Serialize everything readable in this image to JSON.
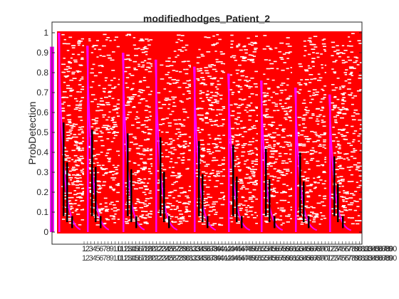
{
  "chart_data": {
    "type": "scatter",
    "title": "modifiedhodges_Patient_2",
    "xlabel": "",
    "ylabel": "ProbDetection",
    "ylim": [
      0,
      1
    ],
    "yticks": [
      "0",
      "0.1",
      "0.2",
      "0.3",
      "0.4",
      "0.5",
      "0.6",
      "0.7",
      "0.8",
      "0.9",
      "1"
    ],
    "x_tick_count": 90,
    "xticks_visible": [
      "1",
      "2",
      "3",
      "4",
      "5",
      "6",
      "7",
      "8",
      "9",
      "10",
      "11",
      "12",
      "13",
      "14",
      "15",
      "16",
      "17",
      "18",
      "19",
      "20",
      "21",
      "22",
      "23",
      "24",
      "25",
      "26",
      "27",
      "28",
      "29",
      "30",
      "31",
      "32",
      "33",
      "34",
      "35",
      "36",
      "37",
      "38",
      "39",
      "40",
      "41",
      "42",
      "43",
      "44",
      "45",
      "46",
      "47",
      "48",
      "49",
      "50",
      "51",
      "52",
      "53",
      "54",
      "55",
      "56",
      "57",
      "58",
      "59",
      "60",
      "61",
      "62",
      "63",
      "64",
      "65",
      "66",
      "67",
      "68",
      "69",
      "70",
      "71",
      "72",
      "73",
      "74",
      "75",
      "76",
      "77",
      "78",
      "79",
      "80",
      "81",
      "82",
      "83",
      "84",
      "85",
      "86",
      "87",
      "88",
      "89",
      "90"
    ],
    "groups": 9,
    "grid": false,
    "legend": "none",
    "series": [
      {
        "color": "#ff0000",
        "marker": "horizontal-dash"
      },
      {
        "color": "#ff00ff",
        "marker": "line"
      },
      {
        "color": "#000000",
        "marker": "thick-line"
      },
      {
        "color": "#ffffff",
        "marker": "gap"
      }
    ]
  }
}
